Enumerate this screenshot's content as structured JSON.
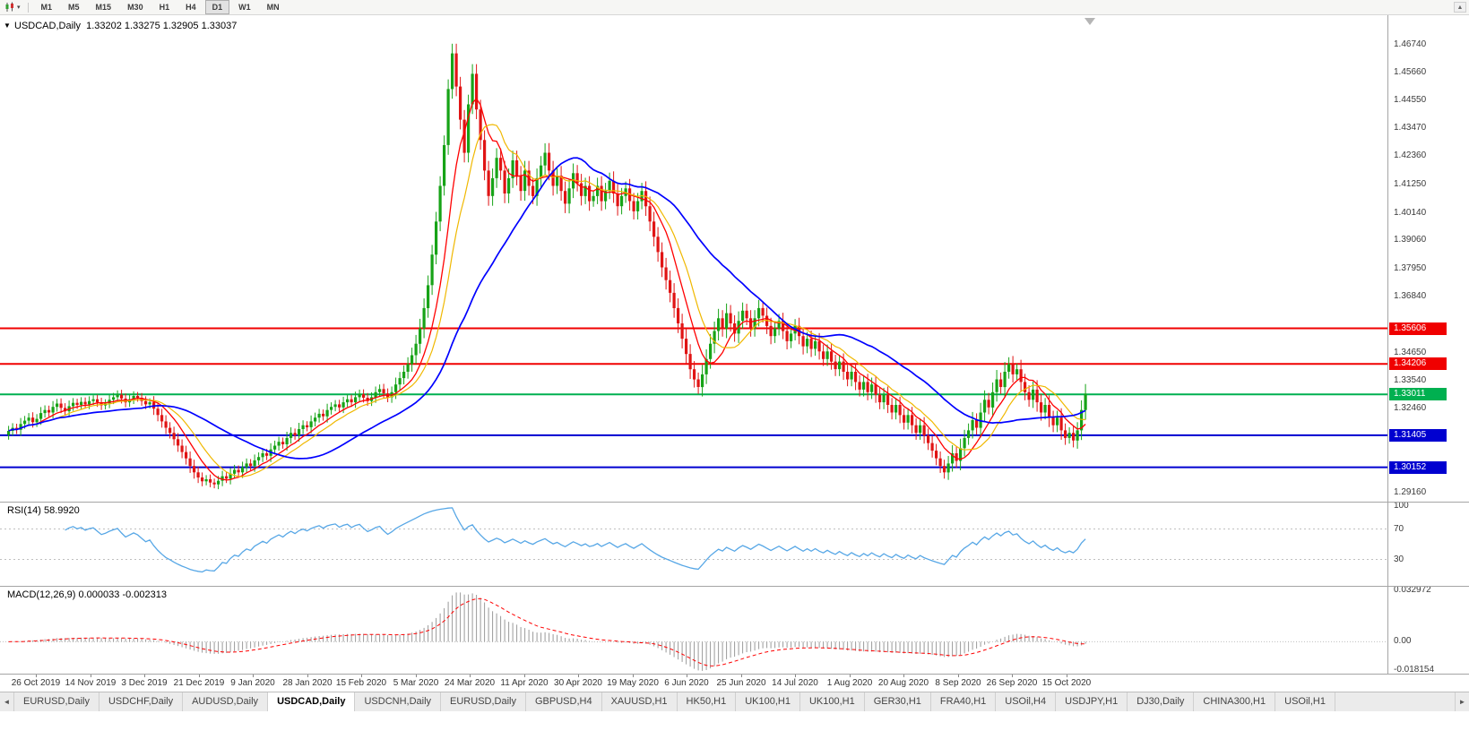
{
  "toolbar": {
    "timeframes": [
      "M1",
      "M5",
      "M15",
      "M30",
      "H1",
      "H4",
      "D1",
      "W1",
      "MN"
    ],
    "active": "D1"
  },
  "icons": {
    "title_marker": "▼",
    "toolbar_caret": "▾",
    "tabs_left": "◄",
    "tabs_right": "►",
    "scroll_up": "▲"
  },
  "chart": {
    "symbol_title": "USDCAD,Daily",
    "quote": {
      "open": "1.33202",
      "high": "1.33275",
      "low": "1.32905",
      "close": "1.33037"
    },
    "price_axis_labels": [
      "1.46740",
      "1.45660",
      "1.44550",
      "1.43470",
      "1.42360",
      "1.41250",
      "1.40140",
      "1.39060",
      "1.37950",
      "1.36840",
      "1.34650",
      "1.33540",
      "1.32460",
      "1.29160"
    ]
  },
  "chart_data": {
    "type": "candlestick",
    "symbol": "USDCAD",
    "period": "Daily",
    "price_range": {
      "top": 1.479,
      "bottom": 1.288
    },
    "x_labels": [
      "26 Oct 2019",
      "14 Nov 2019",
      "3 Dec 2019",
      "21 Dec 2019",
      "9 Jan 2020",
      "28 Jan 2020",
      "15 Feb 2020",
      "5 Mar 2020",
      "24 Mar 2020",
      "11 Apr 2020",
      "30 Apr 2020",
      "19 May 2020",
      "6 Jun 2020",
      "25 Jun 2020",
      "14 Jul 2020",
      "1 Aug 2020",
      "20 Aug 2020",
      "8 Sep 2020",
      "26 Sep 2020",
      "15 Oct 2020"
    ],
    "closes": [
      1.3158,
      1.317,
      1.3162,
      1.3185,
      1.3198,
      1.321,
      1.3192,
      1.3205,
      1.3228,
      1.324,
      1.323,
      1.3252,
      1.3265,
      1.3248,
      1.3235,
      1.3255,
      1.3268,
      1.326,
      1.3272,
      1.3262,
      1.3275,
      1.3282,
      1.327,
      1.3258,
      1.3266,
      1.328,
      1.329,
      1.33,
      1.3285,
      1.327,
      1.3282,
      1.3295,
      1.3288,
      1.3275,
      1.3262,
      1.327,
      1.3245,
      1.322,
      1.3195,
      1.317,
      1.315,
      1.3125,
      1.31,
      1.3075,
      1.305,
      1.302,
      1.2995,
      1.2975,
      1.296,
      1.2968,
      1.2955,
      1.2948,
      1.2962,
      1.298,
      1.297,
      1.299,
      1.3005,
      1.2995,
      1.3015,
      1.303,
      1.302,
      1.3042,
      1.3055,
      1.307,
      1.306,
      1.3085,
      1.31,
      1.3115,
      1.3105,
      1.313,
      1.315,
      1.314,
      1.3165,
      1.318,
      1.3172,
      1.3195,
      1.321,
      1.3225,
      1.3215,
      1.324,
      1.3252,
      1.3262,
      1.325,
      1.327,
      1.3282,
      1.327,
      1.329,
      1.3302,
      1.3288,
      1.3275,
      1.329,
      1.331,
      1.3322,
      1.3305,
      1.329,
      1.331,
      1.334,
      1.3365,
      1.339,
      1.342,
      1.3455,
      1.35,
      1.356,
      1.364,
      1.373,
      1.385,
      1.398,
      1.412,
      1.428,
      1.45,
      1.464,
      1.451,
      1.438,
      1.425,
      1.444,
      1.456,
      1.442,
      1.43,
      1.418,
      1.408,
      1.415,
      1.423,
      1.418,
      1.409,
      1.415,
      1.422,
      1.416,
      1.41,
      1.418,
      1.412,
      1.408,
      1.415,
      1.42,
      1.425,
      1.418,
      1.412,
      1.416,
      1.41,
      1.405,
      1.411,
      1.417,
      1.413,
      1.408,
      1.412,
      1.406,
      1.408,
      1.412,
      1.406,
      1.41,
      1.414,
      1.409,
      1.404,
      1.408,
      1.411,
      1.406,
      1.402,
      1.406,
      1.41,
      1.404,
      1.398,
      1.392,
      1.386,
      1.38,
      1.375,
      1.37,
      1.364,
      1.358,
      1.352,
      1.346,
      1.34,
      1.336,
      1.333,
      1.338,
      1.344,
      1.35,
      1.355,
      1.36,
      1.356,
      1.362,
      1.358,
      1.354,
      1.359,
      1.363,
      1.36,
      1.356,
      1.36,
      1.364,
      1.361,
      1.357,
      1.353,
      1.356,
      1.359,
      1.355,
      1.351,
      1.354,
      1.357,
      1.353,
      1.349,
      1.352,
      1.348,
      1.351,
      1.347,
      1.344,
      1.347,
      1.343,
      1.34,
      1.343,
      1.339,
      1.336,
      1.339,
      1.335,
      1.332,
      1.335,
      1.331,
      1.334,
      1.33,
      1.327,
      1.33,
      1.326,
      1.323,
      1.326,
      1.322,
      1.319,
      1.322,
      1.318,
      1.315,
      1.318,
      1.314,
      1.311,
      1.308,
      1.305,
      1.302,
      1.2995,
      1.303,
      1.307,
      1.304,
      1.309,
      1.313,
      1.316,
      1.32,
      1.317,
      1.323,
      1.328,
      1.325,
      1.331,
      1.336,
      1.333,
      1.339,
      1.342,
      1.338,
      1.34,
      1.335,
      1.331,
      1.328,
      1.332,
      1.327,
      1.323,
      1.326,
      1.321,
      1.318,
      1.321,
      1.316,
      1.313,
      1.315,
      1.312,
      1.316,
      1.324,
      1.3304
    ],
    "horizontal_lines": [
      {
        "price": 1.35606,
        "label": "1.35606",
        "color": "#f00000"
      },
      {
        "price": 1.34206,
        "label": "1.34206",
        "color": "#f00000"
      },
      {
        "price": 1.33011,
        "label": "1.33011",
        "color": "#00b050"
      },
      {
        "price": 1.31405,
        "label": "1.31405",
        "color": "#0000d0"
      },
      {
        "price": 1.30152,
        "label": "1.30152",
        "color": "#0000d0"
      }
    ],
    "moving_averages": [
      {
        "period": 8,
        "color": "#ff0000",
        "width": 1.3
      },
      {
        "period": 13,
        "color": "#f0b800",
        "width": 1.2
      },
      {
        "period": 34,
        "color": "#0000ff",
        "width": 1.7
      }
    ],
    "indicators": {
      "rsi": {
        "label": "RSI(14)",
        "value": "58.9920",
        "period": 14,
        "color": "#57a7e6",
        "levels": [
          70,
          30
        ],
        "axis_labels": [
          "100",
          "70",
          "30"
        ]
      },
      "macd": {
        "label": "MACD(12,26,9)",
        "value_main": "0.000033",
        "value_signal": "-0.002313",
        "fast": 12,
        "slow": 26,
        "signal": 9,
        "hist_color": "#9a9a9a",
        "signal_color": "#ff0000",
        "axis_labels": [
          "0.032972",
          "0.00",
          "-0.018154"
        ],
        "range": [
          -0.0182,
          0.033
        ]
      }
    }
  },
  "tabs": {
    "active_index": 3,
    "items": [
      "EURUSD,Daily",
      "USDCHF,Daily",
      "AUDUSD,Daily",
      "USDCAD,Daily",
      "USDCNH,Daily",
      "EURUSD,Daily",
      "GBPUSD,H4",
      "XAUUSD,H1",
      "HK50,H1",
      "UK100,H1",
      "UK100,H1",
      "GER30,H1",
      "FRA40,H1",
      "USOil,H4",
      "USDJPY,H1",
      "DJ30,Daily",
      "CHINA300,H1",
      "USOil,H1"
    ]
  },
  "colors": {
    "candle_up": "#17a317",
    "candle_down": "#e01414",
    "background": "#ffffff",
    "separator": "#a5a5a5",
    "axis_text": "#3a3a3a",
    "shift_marker": "#b5b5b5",
    "level_dash": "#bfbfbf"
  }
}
